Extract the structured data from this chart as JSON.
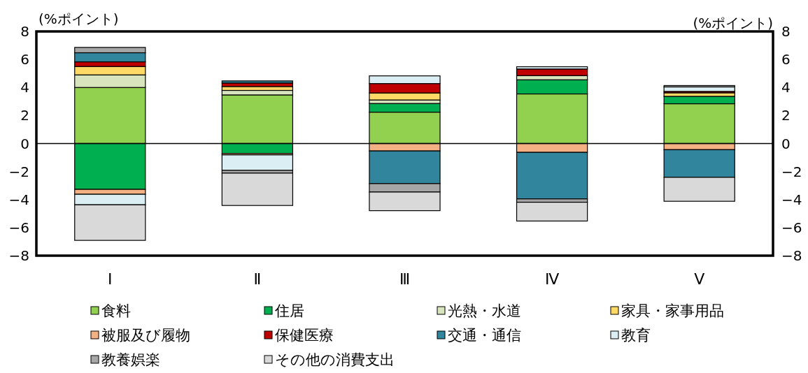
{
  "chart_data": {
    "type": "bar",
    "stacked": true,
    "ylabel": "(%ポイント)",
    "y2label": "(%ポイント)",
    "categories": [
      "Ⅰ",
      "Ⅱ",
      "Ⅲ",
      "Ⅳ",
      "Ⅴ"
    ],
    "ylim": [
      -8,
      8
    ],
    "yticks": [
      -8,
      -6,
      -4,
      -2,
      0,
      2,
      4,
      6,
      8
    ],
    "y2lim": [
      -8,
      8
    ],
    "y2ticks": [
      -8,
      -6,
      -4,
      -2,
      0,
      2,
      4,
      6,
      8
    ],
    "legend": "bottom",
    "series": [
      {
        "name": "食料",
        "color": "#92d050",
        "values": [
          4.0,
          3.47,
          2.24,
          3.54,
          2.84
        ]
      },
      {
        "name": "住居",
        "color": "#00b050",
        "values": [
          -3.27,
          -0.71,
          0.62,
          1.01,
          0.53
        ]
      },
      {
        "name": "光熱・水道",
        "color": "#d7e4bd",
        "values": [
          0.9,
          0.32,
          0.25,
          0.3,
          0
        ]
      },
      {
        "name": "家具・家事用品",
        "color": "#ffd966",
        "values": [
          0.6,
          0.28,
          0.5,
          0,
          0.25
        ]
      },
      {
        "name": "被服及び履物",
        "color": "#f4b183",
        "values": [
          -0.35,
          -0.1,
          -0.53,
          -0.63,
          -0.44
        ]
      },
      {
        "name": "保健医療",
        "color": "#c00000",
        "values": [
          0.33,
          0.25,
          0.67,
          0.47,
          0.1
        ]
      },
      {
        "name": "交通・通信",
        "color": "#31859c",
        "values": [
          0.65,
          0.15,
          -2.33,
          -3.32,
          -1.97
        ]
      },
      {
        "name": "教育",
        "color": "#daeef3",
        "values": [
          -0.75,
          -1.1,
          0.55,
          0.16,
          0.32
        ]
      },
      {
        "name": "教養娯楽",
        "color": "#a6a6a6",
        "values": [
          0.38,
          -0.2,
          -0.6,
          -0.24,
          0.1
        ]
      },
      {
        "name": "その他の消費支出",
        "color": "#d9d9d9",
        "values": [
          -2.54,
          -2.31,
          -1.33,
          -1.34,
          -1.71
        ]
      }
    ]
  }
}
